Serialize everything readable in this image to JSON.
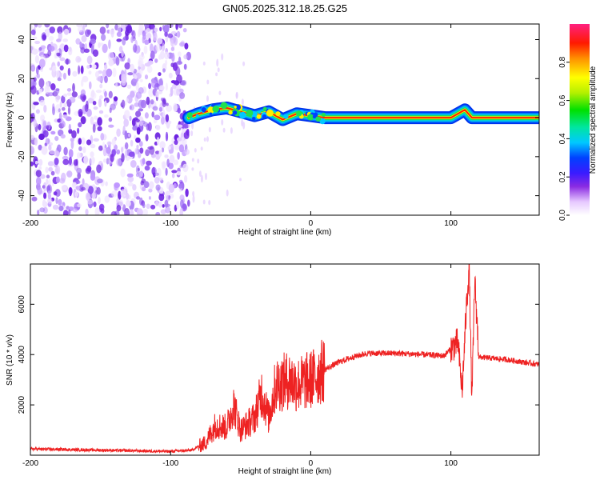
{
  "chart_data": [
    {
      "type": "heatmap",
      "title": "GN05.2025.312.18.25.G25",
      "xlabel": "Height of straight line (km)",
      "ylabel": "Frequency (Hz)",
      "xlim": [
        -200,
        163
      ],
      "ylim": [
        -50,
        48
      ],
      "xticks": [
        -200,
        -100,
        0,
        100
      ],
      "yticks": [
        -40,
        -20,
        0,
        20,
        40
      ],
      "colorbar": {
        "label": "Normalized spectral amplitude",
        "range": [
          0,
          1
        ],
        "ticks": [
          0.0,
          0.2,
          0.4,
          0.6,
          0.8
        ]
      },
      "features": {
        "noise_region_x": [
          -200,
          -87
        ],
        "signal_track": [
          {
            "x": -87,
            "y": 0
          },
          {
            "x": -80,
            "y": 2
          },
          {
            "x": -70,
            "y": 4
          },
          {
            "x": -60,
            "y": 5
          },
          {
            "x": -50,
            "y": 3
          },
          {
            "x": -40,
            "y": 1
          },
          {
            "x": -30,
            "y": 3
          },
          {
            "x": -20,
            "y": -1
          },
          {
            "x": -10,
            "y": 2
          },
          {
            "x": 0,
            "y": 1
          },
          {
            "x": 10,
            "y": 0
          },
          {
            "x": 100,
            "y": 0
          },
          {
            "x": 110,
            "y": 4
          },
          {
            "x": 115,
            "y": 0
          },
          {
            "x": 163,
            "y": 0
          }
        ]
      }
    },
    {
      "type": "line",
      "xlabel": "Height of straight line (km)",
      "ylabel": "SNR (10 * v/v)",
      "xlim": [
        -200,
        163
      ],
      "ylim": [
        0,
        7600
      ],
      "xticks": [
        -200,
        -100,
        0,
        100
      ],
      "yticks": [
        2000,
        4000,
        6000
      ],
      "series": [
        {
          "name": "SNR",
          "color": "#ee2222",
          "points": [
            {
              "x": -200,
              "y": 250
            },
            {
              "x": -150,
              "y": 200
            },
            {
              "x": -100,
              "y": 150
            },
            {
              "x": -85,
              "y": 200
            },
            {
              "x": -75,
              "y": 500
            },
            {
              "x": -68,
              "y": 1200
            },
            {
              "x": -60,
              "y": 1100
            },
            {
              "x": -55,
              "y": 2000
            },
            {
              "x": -50,
              "y": 1000
            },
            {
              "x": -40,
              "y": 1500
            },
            {
              "x": -35,
              "y": 2500
            },
            {
              "x": -30,
              "y": 1500
            },
            {
              "x": -25,
              "y": 2800
            },
            {
              "x": -15,
              "y": 3000
            },
            {
              "x": -10,
              "y": 2800
            },
            {
              "x": 0,
              "y": 3000
            },
            {
              "x": 10,
              "y": 3400
            },
            {
              "x": 20,
              "y": 3700
            },
            {
              "x": 30,
              "y": 3900
            },
            {
              "x": 40,
              "y": 4050
            },
            {
              "x": 60,
              "y": 4050
            },
            {
              "x": 80,
              "y": 4000
            },
            {
              "x": 95,
              "y": 3950
            },
            {
              "x": 105,
              "y": 4500
            },
            {
              "x": 108,
              "y": 2500
            },
            {
              "x": 111,
              "y": 5800
            },
            {
              "x": 113,
              "y": 7500
            },
            {
              "x": 115,
              "y": 2100
            },
            {
              "x": 117,
              "y": 7000
            },
            {
              "x": 120,
              "y": 3900
            },
            {
              "x": 140,
              "y": 3800
            },
            {
              "x": 163,
              "y": 3600
            }
          ]
        }
      ]
    }
  ]
}
